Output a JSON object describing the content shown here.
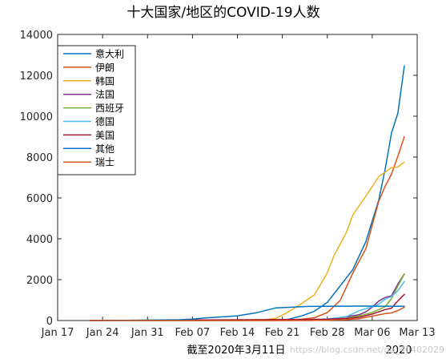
{
  "chart_data": {
    "type": "line",
    "title": "十大国家/地区的COVID-19人数",
    "xlabel": "截至2020年3月11日",
    "year_label": "2020",
    "ylabel": "",
    "xlim": [
      "2020-01-17",
      "2020-03-13"
    ],
    "ylim": [
      0,
      14000
    ],
    "xticks": [
      {
        "date": "2020-01-17",
        "label": "Jan 17"
      },
      {
        "date": "2020-01-24",
        "label": "Jan 24"
      },
      {
        "date": "2020-01-31",
        "label": "Jan 31"
      },
      {
        "date": "2020-02-07",
        "label": "Feb 07"
      },
      {
        "date": "2020-02-14",
        "label": "Feb 14"
      },
      {
        "date": "2020-02-21",
        "label": "Feb 21"
      },
      {
        "date": "2020-02-28",
        "label": "Feb 28"
      },
      {
        "date": "2020-03-06",
        "label": "Mar 06"
      },
      {
        "date": "2020-03-13",
        "label": "Mar 13"
      }
    ],
    "yticks": [
      0,
      2000,
      4000,
      6000,
      8000,
      10000,
      12000,
      14000
    ],
    "grid": false,
    "legend_position": "top-left",
    "series": [
      {
        "name": "意大利",
        "color": "#0072BD",
        "points": [
          [
            "2020-01-22",
            0
          ],
          [
            "2020-01-31",
            2
          ],
          [
            "2020-02-20",
            3
          ],
          [
            "2020-02-22",
            62
          ],
          [
            "2020-02-24",
            229
          ],
          [
            "2020-02-26",
            453
          ],
          [
            "2020-02-28",
            888
          ],
          [
            "2020-03-01",
            1694
          ],
          [
            "2020-03-03",
            2502
          ],
          [
            "2020-03-05",
            3858
          ],
          [
            "2020-03-07",
            5883
          ],
          [
            "2020-03-08",
            7375
          ],
          [
            "2020-03-09",
            9172
          ],
          [
            "2020-03-10",
            10149
          ],
          [
            "2020-03-11",
            12462
          ]
        ]
      },
      {
        "name": "伊朗",
        "color": "#D95319",
        "points": [
          [
            "2020-01-22",
            0
          ],
          [
            "2020-02-19",
            2
          ],
          [
            "2020-02-22",
            28
          ],
          [
            "2020-02-24",
            61
          ],
          [
            "2020-02-26",
            139
          ],
          [
            "2020-02-28",
            388
          ],
          [
            "2020-03-01",
            978
          ],
          [
            "2020-03-03",
            2336
          ],
          [
            "2020-03-05",
            3513
          ],
          [
            "2020-03-07",
            5823
          ],
          [
            "2020-03-08",
            6566
          ],
          [
            "2020-03-09",
            7161
          ],
          [
            "2020-03-10",
            8042
          ],
          [
            "2020-03-11",
            9000
          ]
        ]
      },
      {
        "name": "韩国",
        "color": "#EDB120",
        "points": [
          [
            "2020-01-22",
            1
          ],
          [
            "2020-02-18",
            31
          ],
          [
            "2020-02-20",
            104
          ],
          [
            "2020-02-22",
            433
          ],
          [
            "2020-02-24",
            833
          ],
          [
            "2020-02-26",
            1261
          ],
          [
            "2020-02-28",
            2337
          ],
          [
            "2020-02-29",
            3150
          ],
          [
            "2020-03-01",
            3736
          ],
          [
            "2020-03-02",
            4335
          ],
          [
            "2020-03-03",
            5186
          ],
          [
            "2020-03-05",
            6088
          ],
          [
            "2020-03-07",
            7041
          ],
          [
            "2020-03-09",
            7478
          ],
          [
            "2020-03-10",
            7513
          ],
          [
            "2020-03-11",
            7755
          ]
        ]
      },
      {
        "name": "法国",
        "color": "#7E2F8E",
        "points": [
          [
            "2020-01-22",
            0
          ],
          [
            "2020-01-25",
            3
          ],
          [
            "2020-02-25",
            14
          ],
          [
            "2020-02-28",
            57
          ],
          [
            "2020-03-02",
            191
          ],
          [
            "2020-03-04",
            285
          ],
          [
            "2020-03-05",
            423
          ],
          [
            "2020-03-06",
            653
          ],
          [
            "2020-03-07",
            949
          ],
          [
            "2020-03-08",
            1126
          ],
          [
            "2020-03-09",
            1209
          ],
          [
            "2020-03-10",
            1784
          ],
          [
            "2020-03-11",
            2284
          ]
        ]
      },
      {
        "name": "西班牙",
        "color": "#77AC30",
        "points": [
          [
            "2020-01-22",
            0
          ],
          [
            "2020-02-01",
            1
          ],
          [
            "2020-02-25",
            6
          ],
          [
            "2020-02-28",
            32
          ],
          [
            "2020-03-02",
            120
          ],
          [
            "2020-03-04",
            222
          ],
          [
            "2020-03-06",
            400
          ],
          [
            "2020-03-08",
            673
          ],
          [
            "2020-03-09",
            1073
          ],
          [
            "2020-03-10",
            1695
          ],
          [
            "2020-03-11",
            2277
          ]
        ]
      },
      {
        "name": "德国",
        "color": "#4DBEEE",
        "points": [
          [
            "2020-01-22",
            0
          ],
          [
            "2020-01-27",
            1
          ],
          [
            "2020-02-25",
            16
          ],
          [
            "2020-02-28",
            79
          ],
          [
            "2020-03-02",
            196
          ],
          [
            "2020-03-04",
            482
          ],
          [
            "2020-03-06",
            670
          ],
          [
            "2020-03-07",
            799
          ],
          [
            "2020-03-08",
            1040
          ],
          [
            "2020-03-09",
            1176
          ],
          [
            "2020-03-10",
            1457
          ],
          [
            "2020-03-11",
            1908
          ]
        ]
      },
      {
        "name": "美国",
        "color": "#A2142F",
        "points": [
          [
            "2020-01-22",
            1
          ],
          [
            "2020-02-25",
            53
          ],
          [
            "2020-02-28",
            62
          ],
          [
            "2020-03-02",
            100
          ],
          [
            "2020-03-04",
            158
          ],
          [
            "2020-03-06",
            319
          ],
          [
            "2020-03-08",
            537
          ],
          [
            "2020-03-09",
            605
          ],
          [
            "2020-03-10",
            959
          ],
          [
            "2020-03-11",
            1281
          ]
        ]
      },
      {
        "name": "其他",
        "color": "#0072BD",
        "points": [
          [
            "2020-01-22",
            0
          ],
          [
            "2020-01-28",
            10
          ],
          [
            "2020-02-05",
            40
          ],
          [
            "2020-02-07",
            70
          ],
          [
            "2020-02-09",
            130
          ],
          [
            "2020-02-12",
            190
          ],
          [
            "2020-02-14",
            230
          ],
          [
            "2020-02-17",
            380
          ],
          [
            "2020-02-19",
            540
          ],
          [
            "2020-02-20",
            621
          ],
          [
            "2020-02-25",
            691
          ],
          [
            "2020-03-04",
            706
          ],
          [
            "2020-03-11",
            696
          ]
        ]
      },
      {
        "name": "瑞士",
        "color": "#D95319",
        "points": [
          [
            "2020-01-22",
            0
          ],
          [
            "2020-02-25",
            1
          ],
          [
            "2020-02-28",
            15
          ],
          [
            "2020-03-02",
            42
          ],
          [
            "2020-03-04",
            90
          ],
          [
            "2020-03-06",
            214
          ],
          [
            "2020-03-08",
            337
          ],
          [
            "2020-03-09",
            374
          ],
          [
            "2020-03-10",
            491
          ],
          [
            "2020-03-11",
            652
          ]
        ]
      }
    ]
  },
  "watermark": "https://blog.csdn.net/qq_40402029"
}
